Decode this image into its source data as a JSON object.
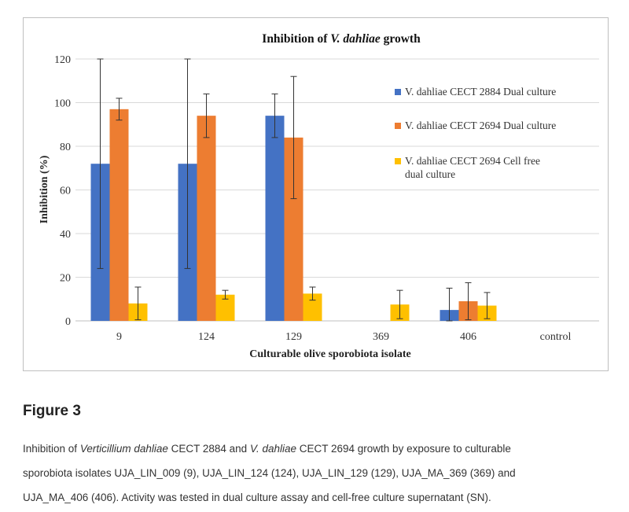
{
  "figure": {
    "label": "Figure 3",
    "caption_lines": [
      [
        {
          "text": "Inhibition of ",
          "italic": false
        },
        {
          "text": "Verticillium dahliae",
          "italic": true
        },
        {
          "text": " CECT 2884 and ",
          "italic": false
        },
        {
          "text": "V. dahliae",
          "italic": true
        },
        {
          "text": " CECT 2694 growth by exposure to culturable",
          "italic": false
        }
      ],
      [
        {
          "text": "sporobiota isolates UJA_LIN_009 (9), UJA_LIN_124 (124), UJA_LIN_129 (129), UJA_MA_369 (369) and",
          "italic": false
        }
      ],
      [
        {
          "text": "UJA_MA_406 (406). Activity was tested in dual culture assay and cell-free culture supernatant (SN).",
          "italic": false
        }
      ]
    ]
  },
  "chart_data": {
    "type": "bar",
    "title_parts": [
      {
        "text": "Inhibition of ",
        "italic": false
      },
      {
        "text": "V. dahliae",
        "italic": true
      },
      {
        "text": " growth",
        "italic": false
      }
    ],
    "xlabel": "Culturable olive sporobiota isolate",
    "ylabel": "Inhibition (%)",
    "ylim": [
      0,
      120
    ],
    "yticks": [
      0,
      20,
      40,
      60,
      80,
      100,
      120
    ],
    "grid": true,
    "legend_position": "right",
    "categories": [
      "9",
      "124",
      "129",
      "369",
      "406",
      "control"
    ],
    "series": [
      {
        "name": "V. dahliae CECT 2884 Dual culture",
        "legend_lines": [
          "V. dahliae CECT 2884 Dual culture"
        ],
        "color": "#4472c4",
        "values": [
          72,
          72,
          94,
          null,
          5,
          null
        ],
        "errors": [
          48,
          48,
          10,
          null,
          10,
          null
        ]
      },
      {
        "name": "V. dahliae CECT 2694 Dual culture",
        "legend_lines": [
          "V. dahliae CECT 2694 Dual culture"
        ],
        "color": "#ed7d31",
        "values": [
          97,
          94,
          84,
          null,
          9,
          null
        ],
        "errors": [
          5,
          10,
          28,
          null,
          8.5,
          null
        ]
      },
      {
        "name": "V. dahliae CECT 2694 Cell free dual culture",
        "legend_lines": [
          "V. dahliae CECT 2694 Cell free",
          "dual culture"
        ],
        "color": "#ffc000",
        "values": [
          8,
          12,
          12.5,
          7.5,
          7,
          null
        ],
        "errors": [
          7.5,
          2,
          3,
          6.5,
          6,
          null
        ]
      }
    ]
  }
}
